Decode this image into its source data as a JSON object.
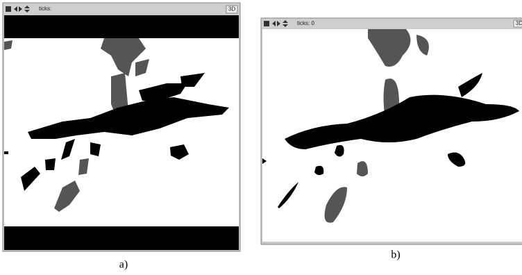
{
  "panels": [
    {
      "ticks_label": "ticks:",
      "view_button": "3D",
      "caption": "a)"
    },
    {
      "ticks_label": "ticks: 0",
      "view_button": "3D",
      "caption": "b)"
    }
  ]
}
